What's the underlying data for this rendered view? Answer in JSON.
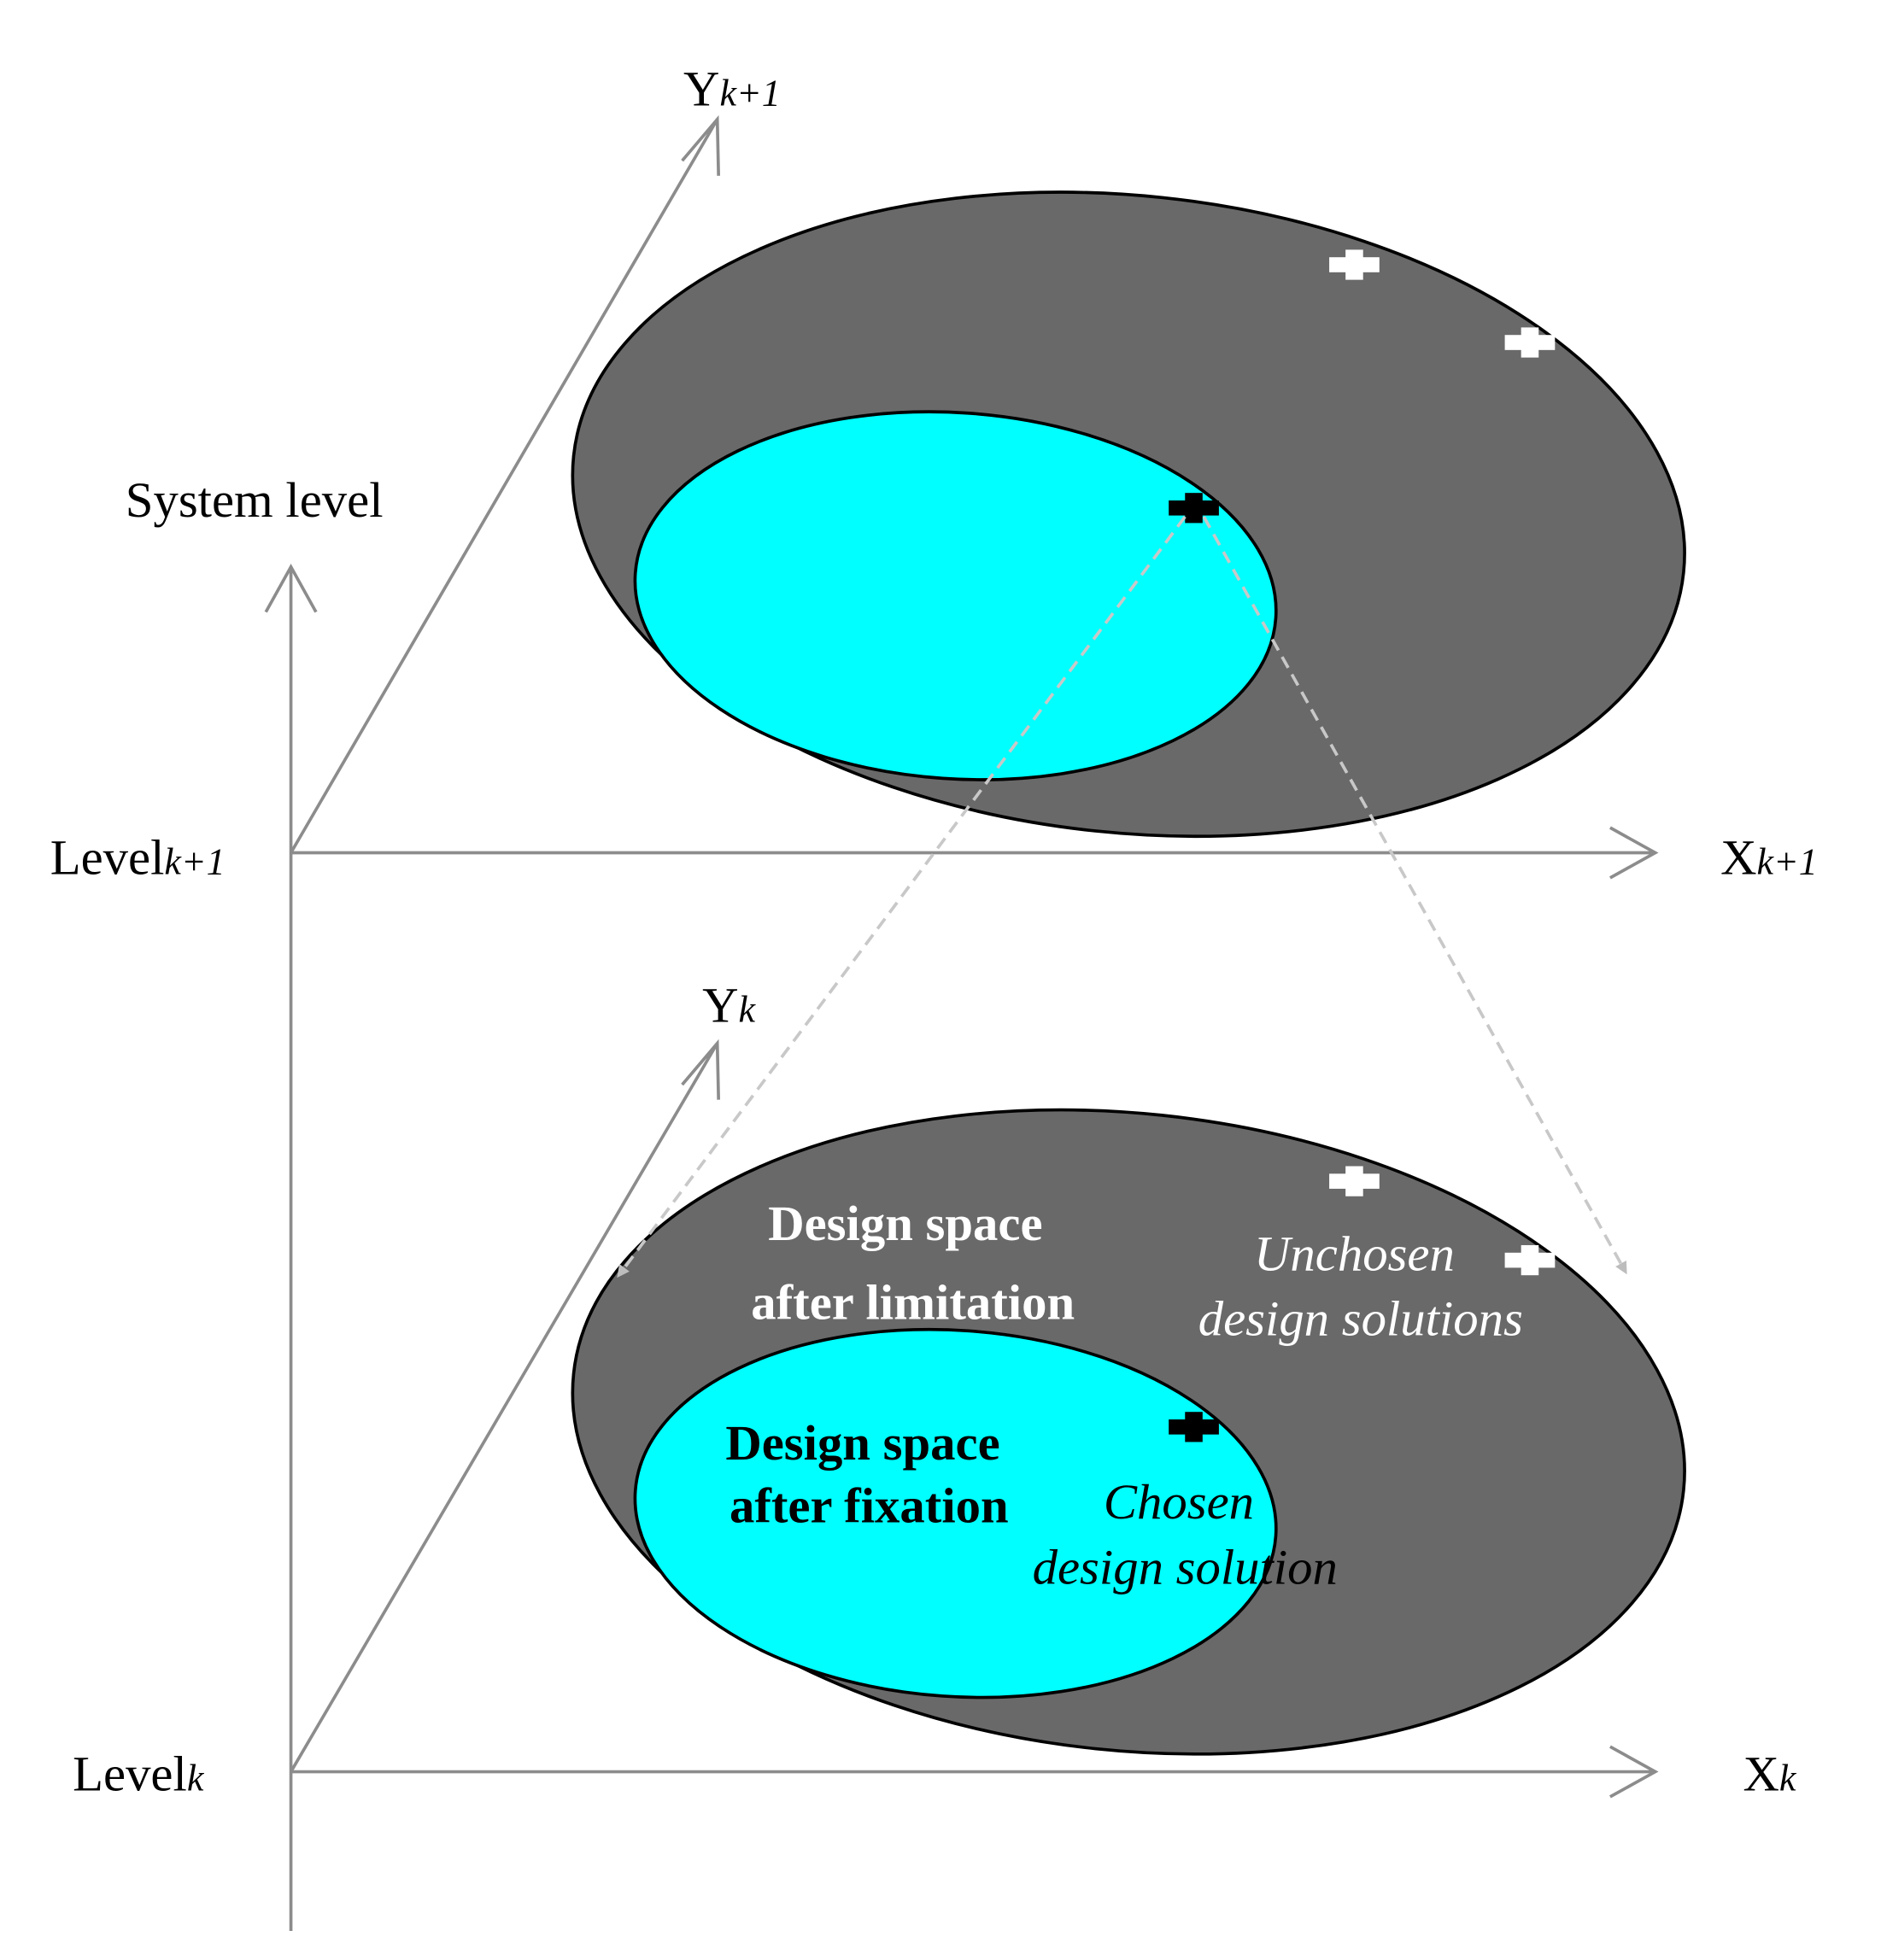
{
  "system_axis_label": "System level",
  "upper_level": {
    "level": {
      "base": "Level",
      "sub": "k+1"
    },
    "x_axis": {
      "base": "X",
      "sub": "k+1"
    },
    "y_axis": {
      "base": "Y",
      "sub": "k+1"
    }
  },
  "lower_level": {
    "level": {
      "base": "Level",
      "sub": "k"
    },
    "x_axis": {
      "base": "X",
      "sub": "k"
    },
    "y_axis": {
      "base": "Y",
      "sub": "k"
    }
  },
  "annotations": {
    "limitation": [
      "Design space",
      "after limitation"
    ],
    "unchosen": [
      "Unchosen",
      "design solutions"
    ],
    "fixation": [
      "Design space",
      "after fixation"
    ],
    "chosen": [
      "Chosen",
      "design solution"
    ]
  }
}
